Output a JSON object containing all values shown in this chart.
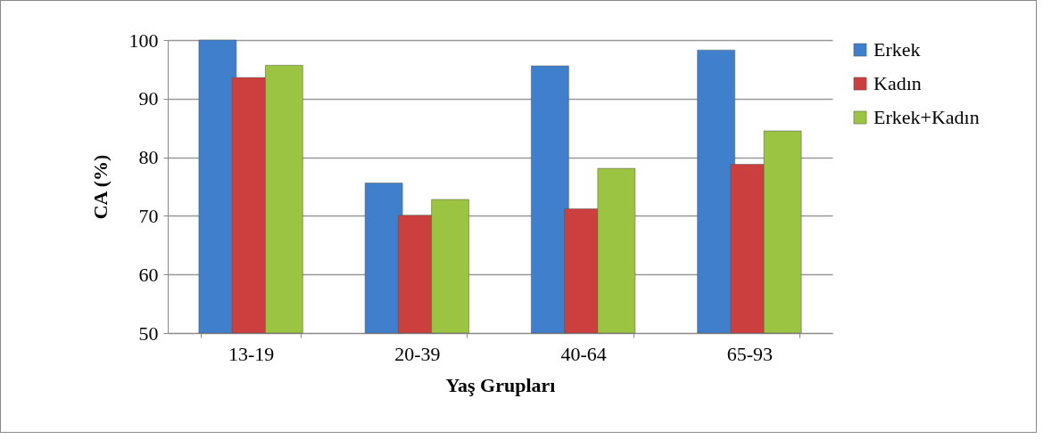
{
  "chart_data": {
    "type": "bar",
    "xlabel": "Yaş Grupları",
    "ylabel": "CA (%)",
    "categories": [
      "13-19",
      "20-39",
      "40-64",
      "65-93"
    ],
    "series": [
      {
        "name": "Erkek",
        "color": "#3f7fcc",
        "values": [
          100,
          75.6,
          95.6,
          98.3
        ]
      },
      {
        "name": "Kadın",
        "color": "#cc3f3f",
        "values": [
          93.6,
          70.1,
          71.2,
          78.8
        ]
      },
      {
        "name": "Erkek+Kadın",
        "color": "#9cc443",
        "values": [
          95.7,
          72.8,
          78.1,
          84.5
        ]
      }
    ],
    "ylim": [
      50,
      100
    ],
    "yticks": [
      50,
      60,
      70,
      80,
      90,
      100
    ],
    "grid": "y",
    "legend": "right"
  }
}
